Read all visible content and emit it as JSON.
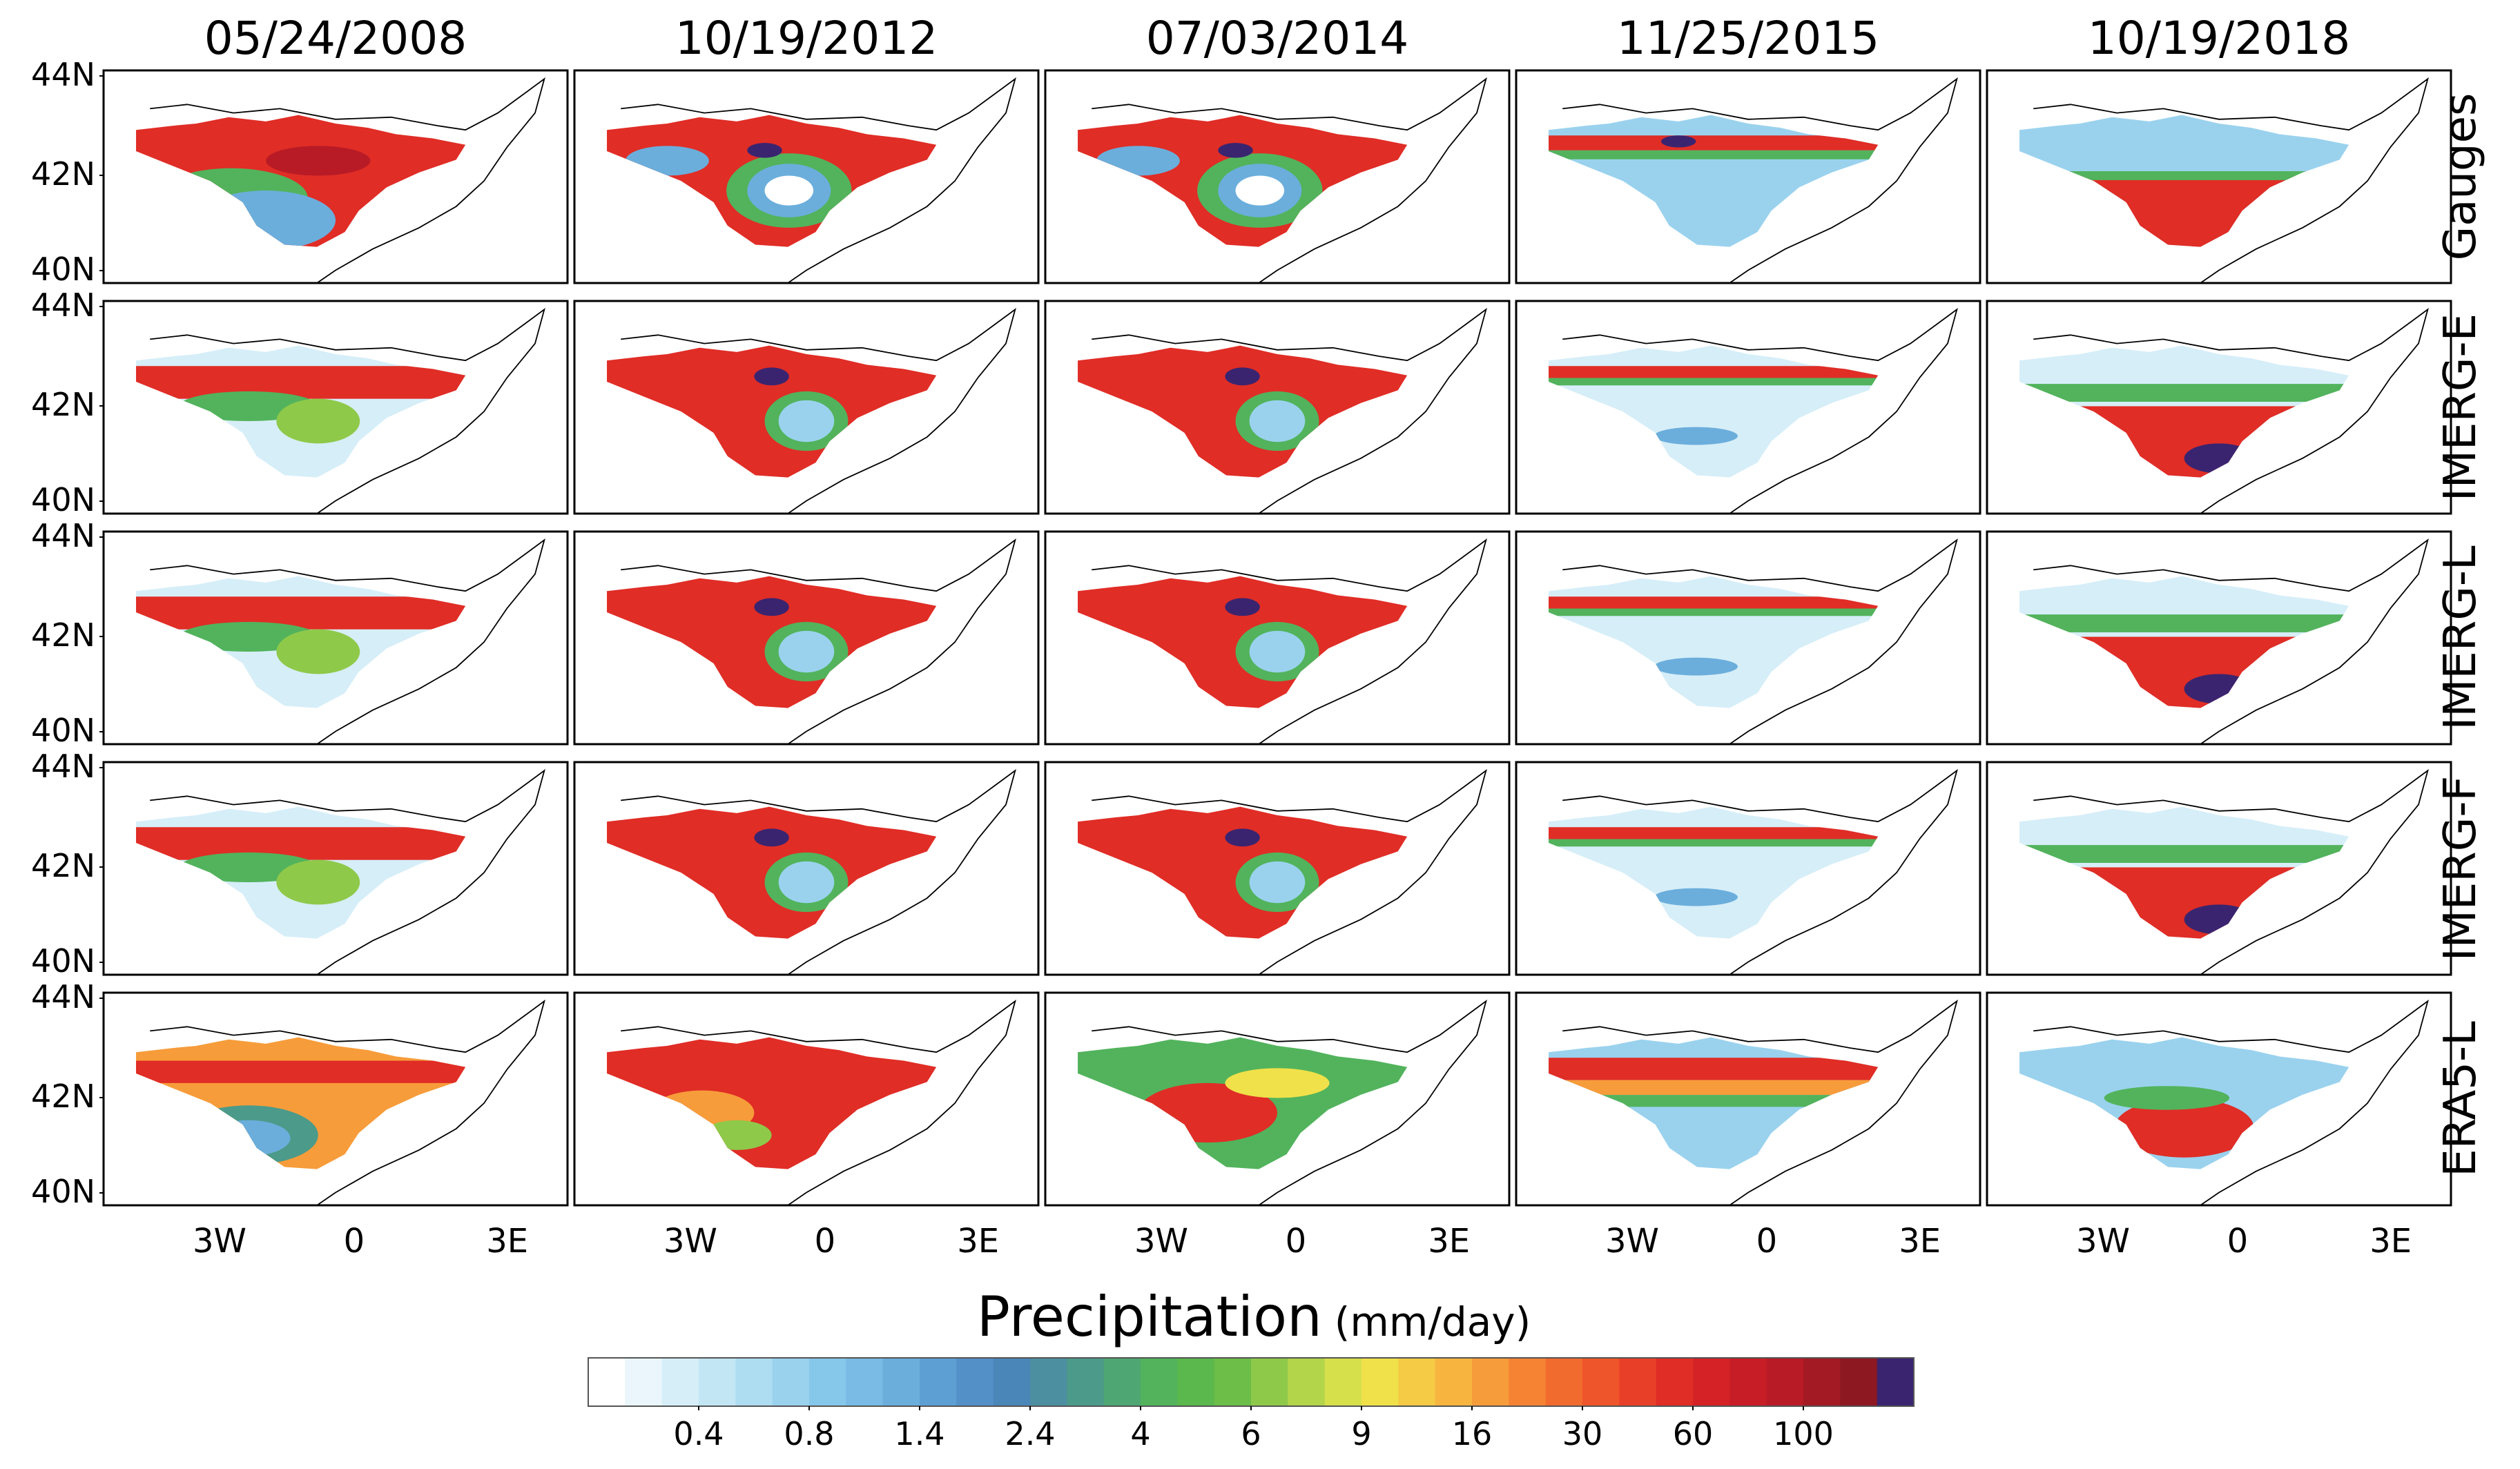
{
  "figure": {
    "dates": [
      "05/24/2008",
      "10/19/2012",
      "07/03/2014",
      "11/25/2015",
      "10/19/2018"
    ],
    "sources": [
      "Gauges",
      "IMERG-E",
      "IMERG-L",
      "IMERG-F",
      "ERA5-L"
    ],
    "lat_labels": [
      "44N",
      "42N",
      "40N"
    ],
    "lon_labels": [
      "3W",
      "0",
      "3E"
    ]
  },
  "colorbar": {
    "title": "Precipitation",
    "units": "(mm/day)",
    "tick_labels": [
      "0.4",
      "0.8",
      "1.4",
      "2.4",
      "4",
      "6",
      "9",
      "16",
      "30",
      "60",
      "100"
    ],
    "colors": [
      "#ffffff",
      "#eaf6fb",
      "#d6eef8",
      "#c2e6f4",
      "#aedcf1",
      "#9ad2ee",
      "#86c8ea",
      "#79bbe4",
      "#6baedc",
      "#5e9fd3",
      "#5390c8",
      "#4b86b8",
      "#4b8fa0",
      "#4c9a8a",
      "#4ea772",
      "#52b35c",
      "#5ab84c",
      "#6cbe48",
      "#8fc94a",
      "#b3d54a",
      "#d6e04a",
      "#f0e14a",
      "#f5cb45",
      "#f7b540",
      "#f79c3a",
      "#f68333",
      "#f26b2e",
      "#ee552a",
      "#e84028",
      "#e02d26",
      "#d42226",
      "#c71d27",
      "#b81b26",
      "#a41a24",
      "#8e1822",
      "#3a2470"
    ]
  },
  "patterns": [
    [
      "grad",
      "ring",
      "ring",
      "band",
      "red_s"
    ],
    [
      "mix",
      "red_blue",
      "red_blue",
      "strip",
      "band_s"
    ],
    [
      "mix",
      "red_blue",
      "red_blue",
      "strip",
      "band_s"
    ],
    [
      "mix",
      "red_blue",
      "red_blue",
      "strip",
      "band_s"
    ],
    [
      "era",
      "era_red",
      "era_green",
      "era_band",
      "era_tri"
    ]
  ]
}
